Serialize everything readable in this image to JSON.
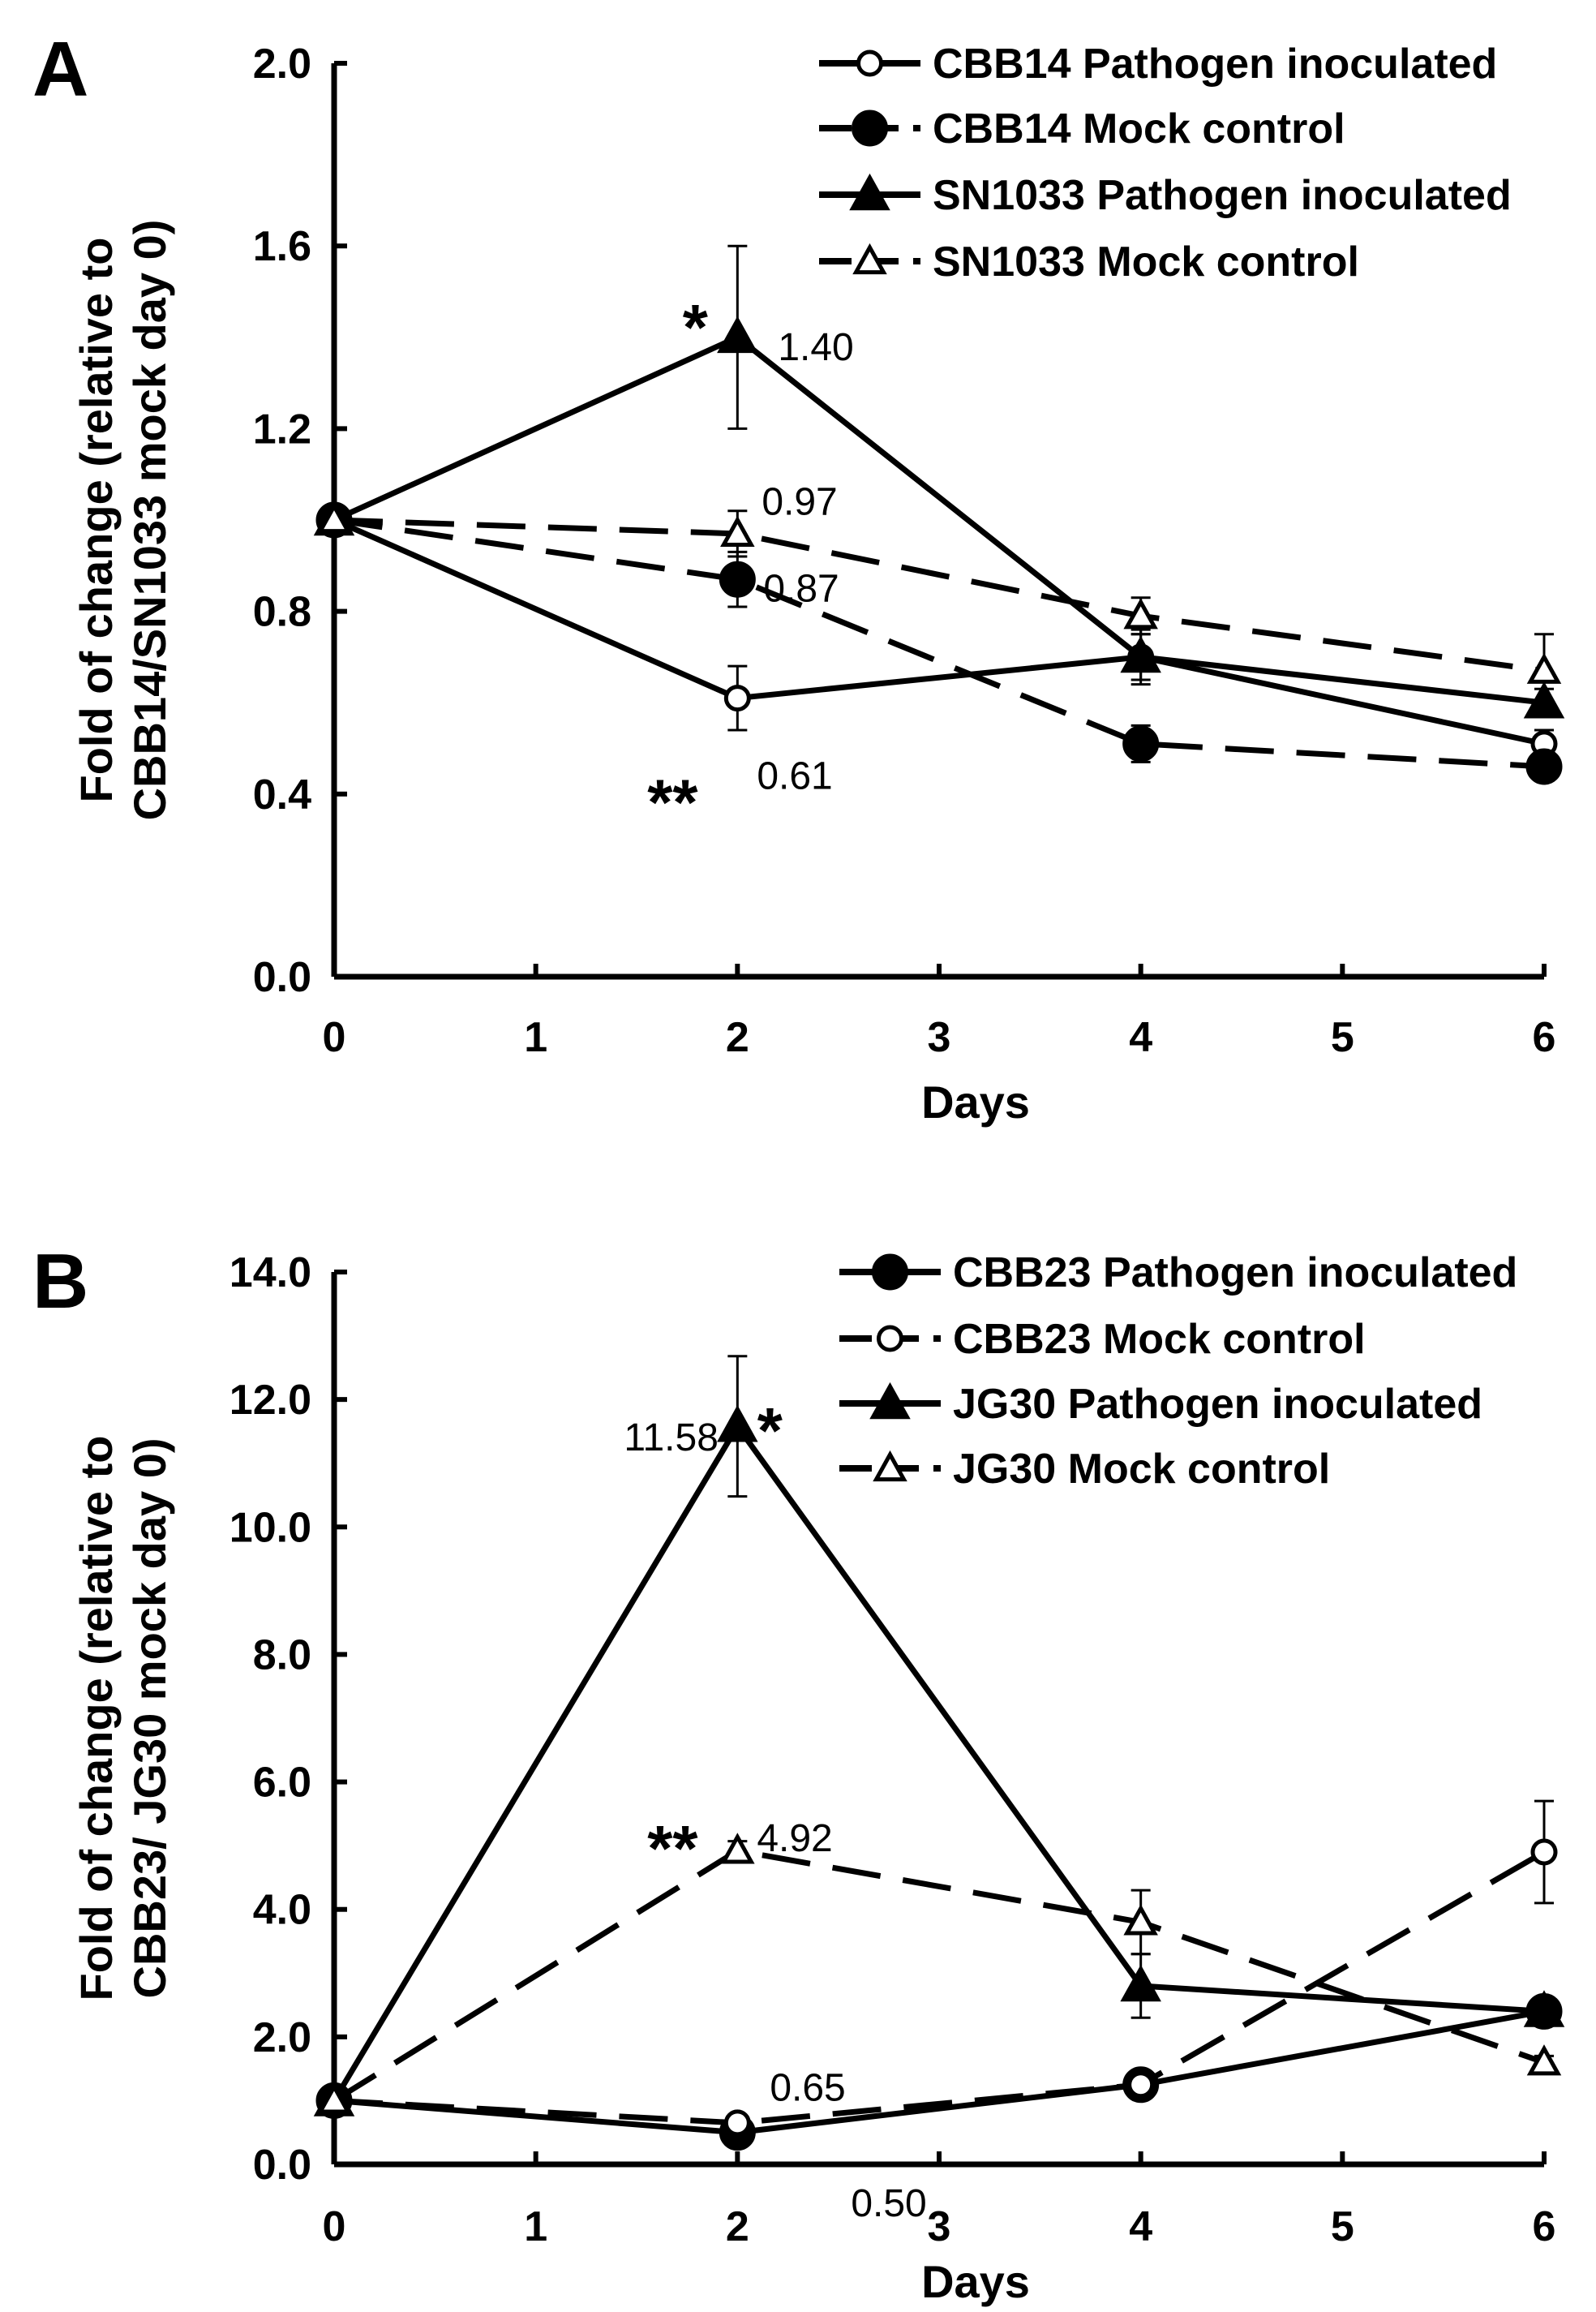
{
  "chart_data": [
    {
      "panel": "A",
      "type": "line",
      "x": [
        0,
        2,
        4,
        6
      ],
      "xticks": [
        "0",
        "1",
        "2",
        "3",
        "4",
        "5",
        "6"
      ],
      "xlim": [
        0,
        6
      ],
      "ylim": [
        0,
        2.0
      ],
      "yticks": [
        "0.0",
        "0.4",
        "0.8",
        "1.2",
        "1.6",
        "2.0"
      ],
      "xlabel": "Days",
      "ylabel_lines": [
        "Fold of change (relative to",
        "CBB14/SN1033 mock day 0)"
      ],
      "legend_position": "top-right",
      "series": [
        {
          "name": "CBB14 Pathogen inoculated",
          "values": [
            1.0,
            0.61,
            0.7,
            0.51
          ],
          "errors": [
            0,
            0.07,
            0.05,
            0.03
          ],
          "marker": "circle-open",
          "line": "solid"
        },
        {
          "name": "CBB14 Mock control",
          "values": [
            1.0,
            0.87,
            0.51,
            0.46
          ],
          "errors": [
            0,
            0.06,
            0.04,
            0.02
          ],
          "marker": "circle-filled",
          "line": "dashed"
        },
        {
          "name": "SN1033 Pathogen inoculated",
          "values": [
            1.0,
            1.4,
            0.7,
            0.6
          ],
          "errors": [
            0,
            0.2,
            0.06,
            0.03
          ],
          "marker": "triangle-filled",
          "line": "solid"
        },
        {
          "name": "SN1033 Mock control",
          "values": [
            1.0,
            0.97,
            0.79,
            0.67
          ],
          "errors": [
            0,
            0.05,
            0.04,
            0.08
          ],
          "marker": "triangle-open",
          "line": "dashed"
        }
      ],
      "annotations": [
        {
          "text": "*",
          "x": 2,
          "y": 1.48,
          "kind": "sig"
        },
        {
          "text": "1.40",
          "x": 2,
          "y": 1.4,
          "kind": "value"
        },
        {
          "text": "0.97",
          "x": 2,
          "y": 1.04,
          "kind": "value"
        },
        {
          "text": "0.87",
          "x": 2,
          "y": 0.85,
          "kind": "value"
        },
        {
          "text": "**",
          "x": 2,
          "y": 0.44,
          "kind": "sig"
        },
        {
          "text": "0.61",
          "x": 2,
          "y": 0.44,
          "kind": "value"
        }
      ]
    },
    {
      "panel": "B",
      "type": "line",
      "x": [
        0,
        2,
        4,
        6
      ],
      "xticks": [
        "0",
        "1",
        "2",
        "3",
        "4",
        "5",
        "6"
      ],
      "xlim": [
        0,
        6
      ],
      "ylim": [
        0,
        14.0
      ],
      "yticks": [
        "0.0",
        "2.0",
        "4.0",
        "6.0",
        "8.0",
        "10.0",
        "12.0",
        "14.0"
      ],
      "xlabel": "Days",
      "ylabel_lines": [
        "Fold of change (relative to",
        "CBB23/ JG30 mock day 0)"
      ],
      "legend_position": "top-right",
      "series": [
        {
          "name": "CBB23 Pathogen inoculated",
          "values": [
            1.0,
            0.5,
            1.25,
            2.4
          ],
          "errors": [
            0,
            0.05,
            0.1,
            0.15
          ],
          "marker": "circle-filled",
          "line": "solid"
        },
        {
          "name": "CBB23 Mock control",
          "values": [
            1.0,
            0.65,
            1.25,
            4.9
          ],
          "errors": [
            0,
            0.05,
            0.1,
            0.8
          ],
          "marker": "circle-open",
          "line": "dashed"
        },
        {
          "name": "JG30 Pathogen inoculated",
          "values": [
            1.0,
            11.58,
            2.8,
            2.4
          ],
          "errors": [
            0,
            1.1,
            0.5,
            0.15
          ],
          "marker": "triangle-filled",
          "line": "solid"
        },
        {
          "name": "JG30 Mock control",
          "values": [
            1.0,
            4.92,
            3.8,
            1.6
          ],
          "errors": [
            0,
            0.15,
            0.5,
            0.1
          ],
          "marker": "triangle-open",
          "line": "dashed"
        }
      ],
      "annotations": [
        {
          "text": "11.58",
          "x": 2,
          "y": 11.58,
          "kind": "value"
        },
        {
          "text": "*",
          "x": 2,
          "y": 11.9,
          "kind": "sig"
        },
        {
          "text": "**",
          "x": 2,
          "y": 5.5,
          "kind": "sig"
        },
        {
          "text": "4.92",
          "x": 2,
          "y": 5.5,
          "kind": "value"
        },
        {
          "text": "0.65",
          "x": 2,
          "y": 1.2,
          "kind": "value"
        },
        {
          "text": "0.50",
          "x": 2,
          "y": -0.1,
          "kind": "value"
        }
      ]
    }
  ]
}
